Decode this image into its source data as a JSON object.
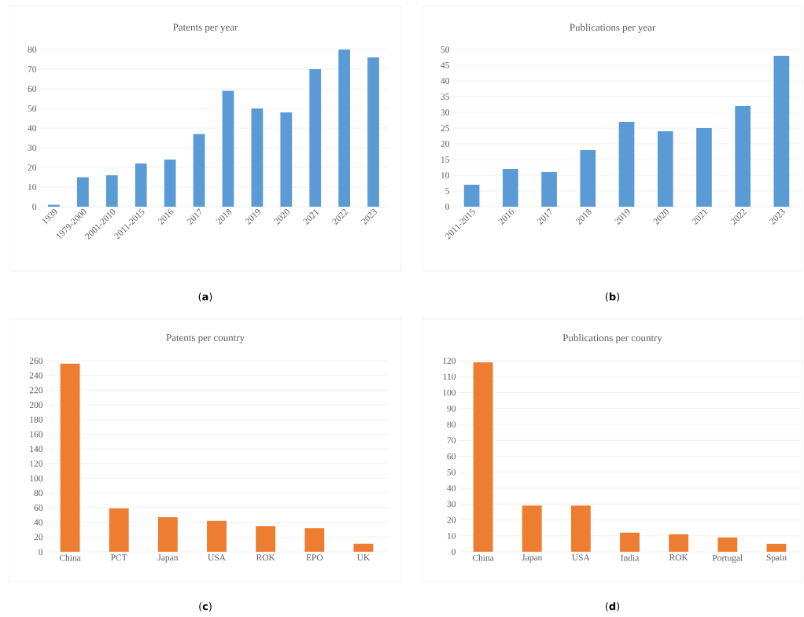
{
  "chart_data": [
    {
      "type": "bar",
      "title": "Patents per year",
      "categories": [
        "1939",
        "1979-2000",
        "2001-2010",
        "2011-2015",
        "2016",
        "2017",
        "2018",
        "2019",
        "2020",
        "2021",
        "2022",
        "2023"
      ],
      "values": [
        1,
        15,
        16,
        22,
        24,
        37,
        59,
        50,
        48,
        70,
        80,
        76
      ],
      "color": "#5b9bd5",
      "ylim": [
        0,
        80
      ],
      "yticks": [
        0,
        10,
        20,
        30,
        40,
        50,
        60,
        70,
        80
      ],
      "grid": "y",
      "annotations": [
        "(**a**)"
      ]
    },
    {
      "type": "bar",
      "title": "Publications per year",
      "categories": [
        "2011-2015",
        "2016",
        "2017",
        "2018",
        "2019",
        "2020",
        "2021",
        "2022",
        "2023"
      ],
      "values": [
        7,
        12,
        11,
        18,
        27,
        24,
        25,
        32,
        48
      ],
      "color": "#5b9bd5",
      "ylim": [
        0,
        50
      ],
      "yticks": [
        0,
        5,
        10,
        15,
        20,
        25,
        30,
        35,
        40,
        45,
        50
      ],
      "grid": "y",
      "annotations": [
        "(**b**)"
      ]
    },
    {
      "type": "bar",
      "title": "Patents per country",
      "categories": [
        "China",
        "PCT",
        "Japan",
        "USA",
        "ROK",
        "EPO",
        "UK"
      ],
      "values": [
        256,
        59,
        47,
        42,
        35,
        32,
        11
      ],
      "color": "#ed7d31",
      "ylim": [
        0,
        260
      ],
      "yticks": [
        0,
        20,
        40,
        60,
        80,
        100,
        120,
        140,
        160,
        180,
        200,
        220,
        240,
        260
      ],
      "grid": "y",
      "annotations": [
        "(**c**)"
      ]
    },
    {
      "type": "bar",
      "title": "Publications per country",
      "categories": [
        "China",
        "Japan",
        "USA",
        "India",
        "ROK",
        "Portugal",
        "Spain"
      ],
      "values": [
        119,
        29,
        29,
        12,
        11,
        9,
        5
      ],
      "color": "#ed7d31",
      "ylim": [
        0,
        120
      ],
      "yticks": [
        0,
        10,
        20,
        30,
        40,
        50,
        60,
        70,
        80,
        90,
        100,
        110,
        120
      ],
      "grid": "y",
      "annotations": [
        "(**d**)"
      ]
    }
  ]
}
